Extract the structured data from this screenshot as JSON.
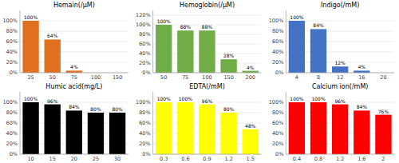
{
  "chart_data": [
    {
      "type": "bar",
      "title": "Hemain(/μM)",
      "categories": [
        "25",
        "50",
        "75",
        "100",
        "150"
      ],
      "values": [
        100,
        64,
        4,
        0,
        0
      ],
      "value_labels": [
        "100%",
        "64%",
        "4%",
        null,
        null
      ],
      "color": "#E07020",
      "ylim": [
        0,
        120
      ],
      "yticks": [
        {
          "value": 0,
          "label": "0%"
        },
        {
          "value": 20,
          "label": "20%"
        },
        {
          "value": 40,
          "label": "40%"
        },
        {
          "value": 60,
          "label": "60%"
        },
        {
          "value": 80,
          "label": "80%"
        },
        {
          "value": 100,
          "label": "100%"
        }
      ],
      "grid": true,
      "data_labels": true
    },
    {
      "type": "bar",
      "title": "Hemoglobin(/μM)",
      "categories": [
        "50",
        "75",
        "100",
        "150",
        "200"
      ],
      "values": [
        100,
        88,
        88,
        28,
        4
      ],
      "value_labels": [
        "100%",
        "88%",
        "88%",
        "28%",
        "4%"
      ],
      "color": "#70AD47",
      "ylim": [
        0,
        130
      ],
      "yticks": [
        {
          "value": 0,
          "label": "0%"
        },
        {
          "value": 20,
          "label": "20%"
        },
        {
          "value": 40,
          "label": "40%"
        },
        {
          "value": 60,
          "label": "60%"
        },
        {
          "value": 80,
          "label": "80%"
        },
        {
          "value": 100,
          "label": "100%"
        },
        {
          "value": 120,
          "label": "120%"
        }
      ],
      "grid": true,
      "data_labels": true
    },
    {
      "type": "bar",
      "title": "Indigo(/mM)",
      "categories": [
        "4",
        "8",
        "12",
        "16",
        "20"
      ],
      "values": [
        100,
        84,
        12,
        4,
        0
      ],
      "value_labels": [
        "100%",
        "84%",
        "12%",
        "4%",
        null
      ],
      "color": "#4472C4",
      "ylim": [
        0,
        120
      ],
      "yticks": [
        {
          "value": 0,
          "label": "0%"
        },
        {
          "value": 20,
          "label": "20%"
        },
        {
          "value": 40,
          "label": "40%"
        },
        {
          "value": 60,
          "label": "60%"
        },
        {
          "value": 80,
          "label": "80%"
        },
        {
          "value": 100,
          "label": "100%"
        }
      ],
      "grid": true,
      "data_labels": true
    },
    {
      "type": "bar",
      "title": "Humic acid(mg/L)",
      "categories": [
        "10",
        "15",
        "20",
        "25",
        "30"
      ],
      "values": [
        100,
        96,
        84,
        80,
        80
      ],
      "value_labels": [
        "100%",
        "96%",
        "84%",
        "80%",
        "80%"
      ],
      "color": "#000000",
      "ylim": [
        0,
        120
      ],
      "yticks": [
        {
          "value": 0,
          "label": "0%"
        },
        {
          "value": 20,
          "label": "20%"
        },
        {
          "value": 40,
          "label": "40%"
        },
        {
          "value": 60,
          "label": "60%"
        },
        {
          "value": 80,
          "label": "80%"
        },
        {
          "value": 100,
          "label": "100%"
        }
      ],
      "grid": true,
      "data_labels": true
    },
    {
      "type": "bar",
      "title": "EDTA(/mM)",
      "categories": [
        "0.3",
        "0.6",
        "0.9",
        "1.2",
        "1.5"
      ],
      "values": [
        100,
        100,
        96,
        80,
        48
      ],
      "value_labels": [
        "100%",
        "100%",
        "96%",
        "80%",
        "48%"
      ],
      "color": "#FFFF00",
      "ylim": [
        0,
        120
      ],
      "yticks": [
        {
          "value": 0,
          "label": "0%"
        },
        {
          "value": 20,
          "label": "20%"
        },
        {
          "value": 40,
          "label": "40%"
        },
        {
          "value": 60,
          "label": "60%"
        },
        {
          "value": 80,
          "label": "80%"
        },
        {
          "value": 100,
          "label": "100%"
        }
      ],
      "grid": true,
      "data_labels": true
    },
    {
      "type": "bar",
      "title": "Calcium ion(/mM)",
      "categories": [
        "0.4",
        "0.8",
        "1.2",
        "1.6",
        "2"
      ],
      "values": [
        100,
        100,
        96,
        84,
        76
      ],
      "value_labels": [
        "100%",
        "100%",
        "96%",
        "84%",
        "76%"
      ],
      "color": "#FF0000",
      "ylim": [
        0,
        120
      ],
      "yticks": [
        {
          "value": 0,
          "label": "0%"
        },
        {
          "value": 20,
          "label": "20%"
        },
        {
          "value": 40,
          "label": "40%"
        },
        {
          "value": 60,
          "label": "60%"
        },
        {
          "value": 80,
          "label": "80%"
        },
        {
          "value": 100,
          "label": "100%"
        }
      ],
      "grid": true,
      "data_labels": true
    }
  ]
}
